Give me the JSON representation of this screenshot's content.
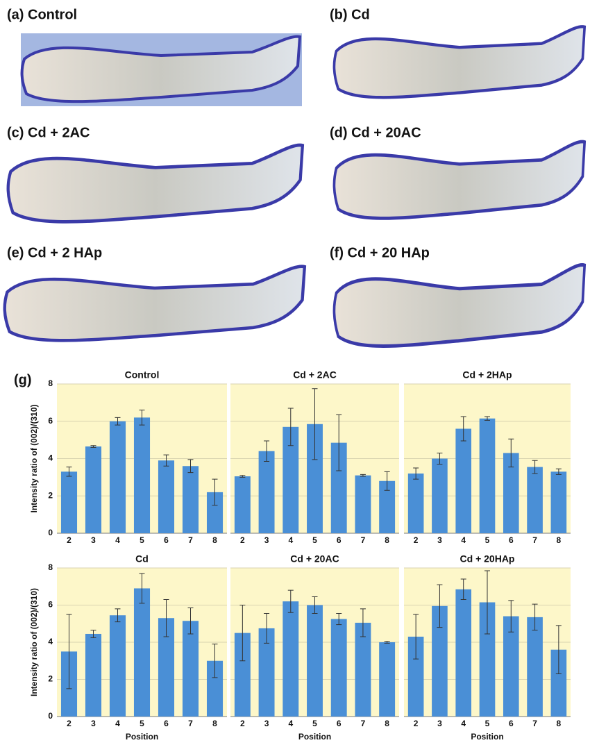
{
  "panels": [
    "(a) Control",
    "(b) Cd",
    "(c) Cd + 2AC",
    "(d) Cd + 20AC",
    "(e) Cd + 2 HAp",
    "(f) Cd + 20 HAp"
  ],
  "figure_label": "(g)",
  "chart_data": [
    {
      "type": "bar",
      "title": "Control",
      "y_label": "Intensity ratio of (002)/(310)",
      "categories": [
        "2",
        "3",
        "4",
        "5",
        "6",
        "7",
        "8"
      ],
      "values": [
        3.3,
        4.65,
        6.0,
        6.2,
        3.9,
        3.6,
        2.2
      ],
      "errors": [
        0.25,
        0.05,
        0.2,
        0.4,
        0.3,
        0.35,
        0.7
      ],
      "color": "#4a8fd6",
      "background": "#fdf7c9",
      "ylim": [
        0,
        8
      ],
      "yticks": [
        0,
        2,
        4,
        6,
        8
      ],
      "grid": true
    },
    {
      "type": "bar",
      "title": "Cd + 2AC",
      "categories": [
        "2",
        "3",
        "4",
        "5",
        "6",
        "7",
        "8"
      ],
      "values": [
        3.05,
        4.4,
        5.7,
        5.85,
        4.85,
        3.1,
        2.8
      ],
      "errors": [
        0.05,
        0.55,
        1.0,
        1.9,
        1.5,
        0.05,
        0.5
      ],
      "color": "#4a8fd6",
      "background": "#fdf7c9",
      "ylim": [
        0,
        8
      ],
      "yticks": [
        0,
        2,
        4,
        6,
        8
      ],
      "grid": true
    },
    {
      "type": "bar",
      "title": "Cd + 2HAp",
      "categories": [
        "2",
        "3",
        "4",
        "5",
        "6",
        "7",
        "8"
      ],
      "values": [
        3.2,
        4.0,
        5.6,
        6.15,
        4.3,
        3.55,
        3.3
      ],
      "errors": [
        0.3,
        0.3,
        0.65,
        0.1,
        0.75,
        0.35,
        0.15
      ],
      "color": "#4a8fd6",
      "background": "#fdf7c9",
      "ylim": [
        0,
        8
      ],
      "yticks": [
        0,
        2,
        4,
        6,
        8
      ],
      "grid": true
    },
    {
      "type": "bar",
      "title": "Cd",
      "y_label": "Intensity ratio of (002)/(310)",
      "x_label": "Position",
      "categories": [
        "2",
        "3",
        "4",
        "5",
        "6",
        "7",
        "8"
      ],
      "values": [
        3.5,
        4.45,
        5.45,
        6.9,
        5.3,
        5.15,
        3.0
      ],
      "errors": [
        2.0,
        0.2,
        0.35,
        0.8,
        1.0,
        0.7,
        0.9
      ],
      "color": "#4a8fd6",
      "background": "#fdf7c9",
      "ylim": [
        0,
        8
      ],
      "yticks": [
        0,
        2,
        4,
        6,
        8
      ],
      "grid": true
    },
    {
      "type": "bar",
      "title": "Cd + 20AC",
      "x_label": "Position",
      "categories": [
        "2",
        "3",
        "4",
        "5",
        "6",
        "7",
        "8"
      ],
      "values": [
        4.5,
        4.75,
        6.2,
        6.0,
        5.25,
        5.05,
        4.0
      ],
      "errors": [
        1.5,
        0.8,
        0.6,
        0.45,
        0.3,
        0.75,
        0.05
      ],
      "color": "#4a8fd6",
      "background": "#fdf7c9",
      "ylim": [
        0,
        8
      ],
      "yticks": [
        0,
        2,
        4,
        6,
        8
      ],
      "grid": true
    },
    {
      "type": "bar",
      "title": "Cd + 20HAp",
      "x_label": "Position",
      "categories": [
        "2",
        "3",
        "4",
        "5",
        "6",
        "7",
        "8"
      ],
      "values": [
        4.3,
        5.95,
        6.85,
        6.15,
        5.4,
        5.35,
        3.6
      ],
      "errors": [
        1.2,
        1.15,
        0.55,
        1.7,
        0.85,
        0.7,
        1.3
      ],
      "color": "#4a8fd6",
      "background": "#fdf7c9",
      "ylim": [
        0,
        8
      ],
      "yticks": [
        0,
        2,
        4,
        6,
        8
      ],
      "grid": true
    }
  ]
}
